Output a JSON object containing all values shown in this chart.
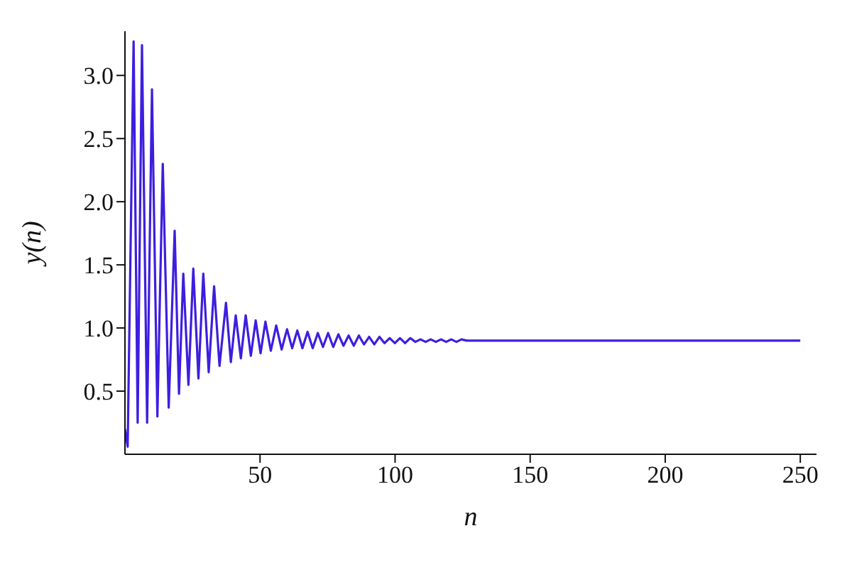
{
  "chart_data": {
    "type": "line",
    "xlabel": "n",
    "ylabel": "y(n)",
    "xlim": [
      0,
      256
    ],
    "ylim": [
      0,
      3.35
    ],
    "xticks": [
      50,
      100,
      150,
      200,
      250
    ],
    "yticks": [
      0.5,
      {
        "value": 1,
        "label": "1.0"
      },
      1.5,
      {
        "value": 2,
        "label": "2.0"
      },
      2.5,
      {
        "value": 3,
        "label": "3.0"
      }
    ],
    "grid": false,
    "legend": false,
    "marker": "none",
    "line_style": "solid",
    "x": [
      0,
      1,
      3.2,
      4.7,
      6.3,
      8.2,
      10,
      12,
      14,
      16.2,
      18.4,
      20,
      21.6,
      23.5,
      25.3,
      27.2,
      29,
      31,
      33,
      35,
      37.4,
      39.2,
      41,
      42.9,
      44.7,
      46.6,
      48.4,
      50.2,
      52,
      54,
      56,
      58,
      60,
      61.9,
      63.8,
      65.7,
      67.6,
      69.5,
      71.4,
      73.3,
      75.2,
      77.1,
      79,
      80.9,
      82.8,
      84.7,
      86.6,
      88.5,
      90.4,
      92.3,
      94.2,
      96.1,
      98,
      99.9,
      101.8,
      103.7,
      105.6,
      107.5,
      109.4,
      111.3,
      113.2,
      115.1,
      117,
      118.9,
      120.8,
      122.7,
      124.6,
      126.5,
      250
    ],
    "series": [
      {
        "color": "#3d1ee0",
        "values": [
          0.2,
          0.06,
          3.27,
          0.25,
          3.24,
          0.25,
          2.89,
          0.3,
          2.3,
          0.37,
          1.77,
          0.48,
          1.43,
          0.55,
          1.47,
          0.6,
          1.43,
          0.65,
          1.33,
          0.7,
          1.2,
          0.73,
          1.1,
          0.76,
          1.1,
          0.78,
          1.06,
          0.8,
          1.05,
          0.82,
          1.02,
          0.83,
          0.99,
          0.84,
          0.98,
          0.84,
          0.97,
          0.84,
          0.96,
          0.85,
          0.96,
          0.85,
          0.95,
          0.86,
          0.94,
          0.86,
          0.94,
          0.87,
          0.93,
          0.87,
          0.93,
          0.88,
          0.92,
          0.88,
          0.92,
          0.88,
          0.92,
          0.89,
          0.91,
          0.89,
          0.91,
          0.89,
          0.91,
          0.89,
          0.91,
          0.89,
          0.91,
          0.9,
          0.9
        ]
      }
    ]
  }
}
